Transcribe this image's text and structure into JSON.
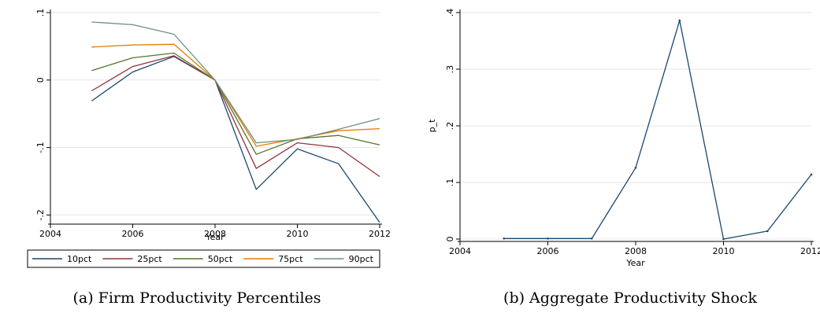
{
  "chart_data": [
    {
      "type": "line",
      "caption": "(a) Firm Productivity Percentiles",
      "xlabel": "Year",
      "ylabel": "",
      "xlim": [
        2004,
        2012
      ],
      "ylim": [
        -0.21,
        0.1
      ],
      "x_ticks": [
        2004,
        2006,
        2008,
        2010,
        2012
      ],
      "y_ticks": [
        0.1,
        0,
        -0.1,
        -0.2
      ],
      "y_tick_labels": [
        ".1",
        "0",
        "-.1",
        "-.2"
      ],
      "grid": "horizontal",
      "legend": "bottom",
      "x": [
        2005,
        2006,
        2007,
        2008,
        2009,
        2010,
        2011,
        2012
      ],
      "series": [
        {
          "name": "10pct",
          "color": "#1a476f",
          "values": [
            -0.031,
            0.012,
            0.035,
            0,
            -0.162,
            -0.102,
            -0.124,
            -0.211
          ]
        },
        {
          "name": "25pct",
          "color": "#90353b",
          "values": [
            -0.016,
            0.02,
            0.036,
            0,
            -0.131,
            -0.093,
            -0.1,
            -0.143
          ]
        },
        {
          "name": "50pct",
          "color": "#55752f",
          "values": [
            0.014,
            0.033,
            0.04,
            0,
            -0.11,
            -0.087,
            -0.082,
            -0.096
          ]
        },
        {
          "name": "75pct",
          "color": "#e37e00",
          "values": [
            0.049,
            0.052,
            0.053,
            0,
            -0.098,
            -0.087,
            -0.075,
            -0.072
          ]
        },
        {
          "name": "90pct",
          "color": "#6e8e84",
          "values": [
            0.086,
            0.082,
            0.068,
            0,
            -0.093,
            -0.088,
            -0.073,
            -0.057
          ]
        }
      ]
    },
    {
      "type": "line",
      "caption": "(b) Aggregate Productivity Shock",
      "xlabel": "Year",
      "ylabel": "p_t",
      "xlim": [
        2004,
        2012
      ],
      "ylim": [
        0,
        0.4
      ],
      "x_ticks": [
        2004,
        2006,
        2008,
        2010,
        2012
      ],
      "y_ticks": [
        0,
        0.1,
        0.2,
        0.3,
        0.4
      ],
      "y_tick_labels": [
        "0",
        ".1",
        ".2",
        ".3",
        ".4"
      ],
      "grid": "horizontal",
      "legend": "none",
      "x": [
        2005,
        2006,
        2007,
        2008,
        2009,
        2010,
        2011,
        2012
      ],
      "series": [
        {
          "name": "",
          "color": "#1a476f",
          "values": [
            0.001,
            0.001,
            0.001,
            0.126,
            0.386,
            0.0,
            0.014,
            0.114
          ]
        }
      ]
    }
  ]
}
